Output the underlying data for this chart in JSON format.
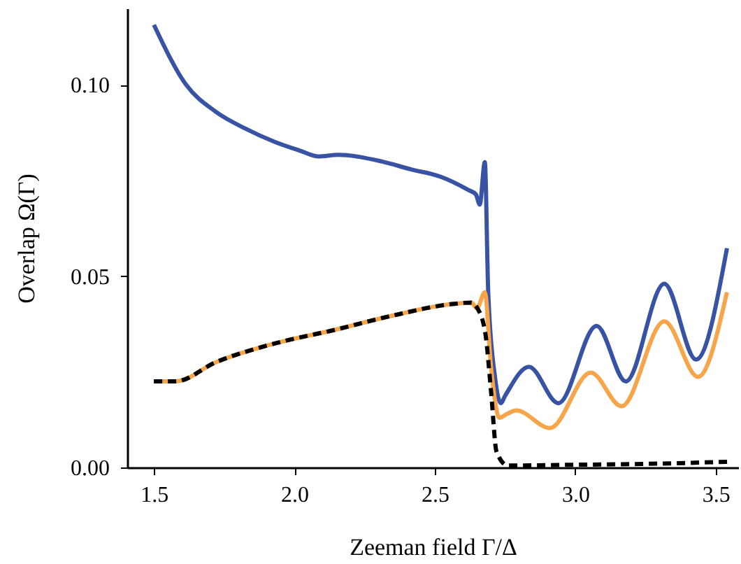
{
  "chart_data": {
    "type": "line",
    "xlabel": "Zeeman field Γ/Δ",
    "ylabel": "Overlap Ω(Γ)",
    "xlim": [
      1.405,
      3.58
    ],
    "ylim": [
      0,
      0.12
    ],
    "xticks": [
      {
        "value": 1.5,
        "label": "1.5"
      },
      {
        "value": 2.0,
        "label": "2.0"
      },
      {
        "value": 2.5,
        "label": "2.5"
      },
      {
        "value": 3.0,
        "label": "3.0"
      },
      {
        "value": 3.5,
        "label": "3.5"
      }
    ],
    "yticks": [
      {
        "value": 0,
        "label": "0.00"
      },
      {
        "value": 0.05,
        "label": "0.05"
      },
      {
        "value": 0.1,
        "label": "0.10"
      }
    ],
    "grid": false,
    "series": [
      {
        "color": "#3953a4",
        "line_style": "solid",
        "x": [
          1.5,
          1.615,
          1.72,
          1.825,
          1.93,
          2.02,
          2.086,
          2.155,
          2.31,
          2.416,
          2.52,
          2.62,
          2.646,
          2.66,
          2.678,
          2.69,
          2.714,
          2.735,
          2.75,
          2.835,
          2.94,
          3.076,
          3.18,
          3.317,
          3.43,
          3.54
        ],
        "values": [
          0.1157,
          0.1,
          0.093,
          0.0886,
          0.0851,
          0.0828,
          0.0813,
          0.0817,
          0.08,
          0.0779,
          0.076,
          0.0725,
          0.0714,
          0.0687,
          0.0798,
          0.046,
          0.0237,
          0.0168,
          0.0187,
          0.0263,
          0.0168,
          0.037,
          0.0225,
          0.048,
          0.0282,
          0.0573
        ]
      },
      {
        "color": "#f7a54a",
        "line_style": "solid",
        "x": [
          1.5,
          1.577,
          1.72,
          1.93,
          2.14,
          2.35,
          2.56,
          2.63,
          2.65,
          2.678,
          2.7,
          2.73,
          2.76,
          2.79,
          2.91,
          3.055,
          3.165,
          3.317,
          3.437,
          3.54
        ],
        "values": [
          0.0225,
          0.0225,
          0.0275,
          0.0324,
          0.0359,
          0.0397,
          0.0427,
          0.0431,
          0.0416,
          0.0458,
          0.0263,
          0.013,
          0.0141,
          0.0149,
          0.0103,
          0.0248,
          0.016,
          0.0382,
          0.0237,
          0.0458
        ]
      },
      {
        "color": "#000000",
        "line_style": "dashed",
        "x": [
          1.5,
          1.577,
          1.72,
          1.93,
          2.14,
          2.35,
          2.56,
          2.63,
          2.65,
          2.68,
          2.7,
          2.72,
          2.76,
          3.0,
          3.3,
          3.55
        ],
        "values": [
          0.0225,
          0.0225,
          0.0275,
          0.0324,
          0.0359,
          0.0397,
          0.0427,
          0.0431,
          0.0418,
          0.035,
          0.02,
          0.004,
          0.0005,
          0.0007,
          0.001,
          0.0015
        ]
      }
    ]
  }
}
